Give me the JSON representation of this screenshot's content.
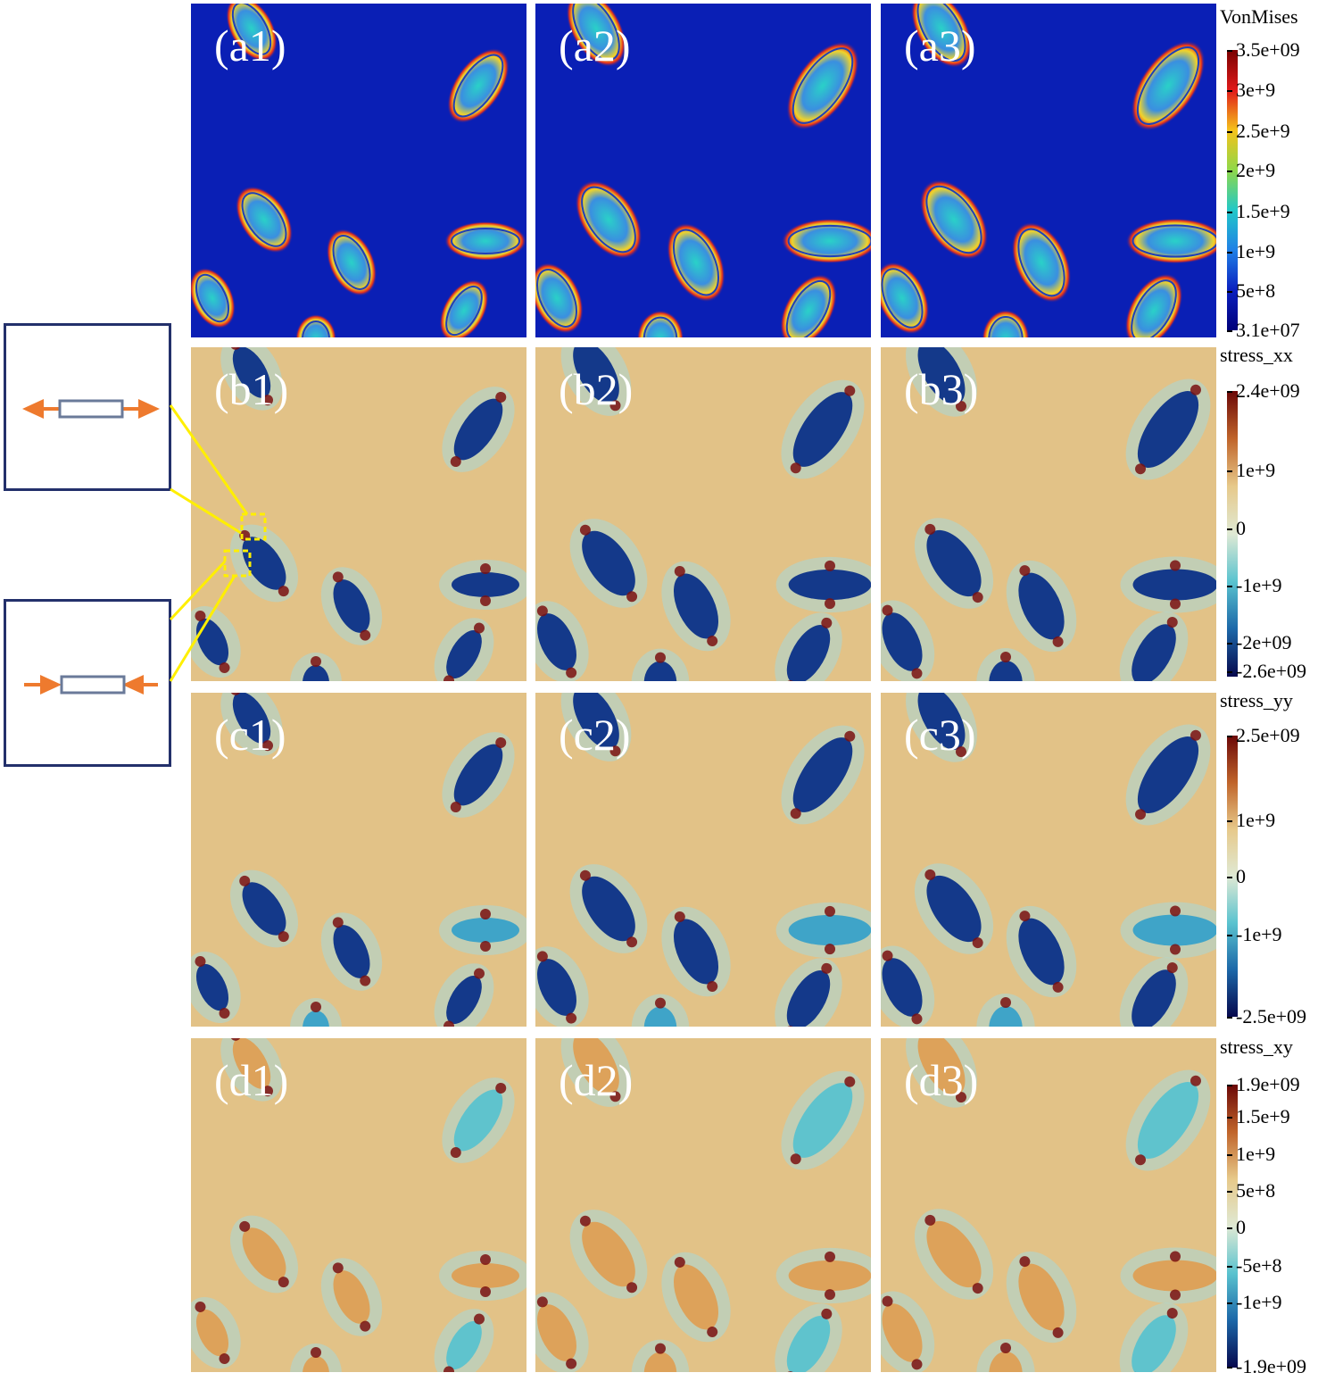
{
  "figure": {
    "columns": 3,
    "rows": [
      {
        "id": "a",
        "field": "VonMises",
        "labels": [
          "(a1)",
          "(a2)",
          "(a3)"
        ],
        "legend": {
          "title": "VonMises",
          "ticks": [
            "3.5e+09",
            "3e+9",
            "2.5e+9",
            "2e+9",
            "1.5e+9",
            "1e+9",
            "5e+8",
            "3.1e+07"
          ],
          "colors": [
            "#7a0000",
            "#e01a1a",
            "#f5c21b",
            "#8fd84a",
            "#22c8c8",
            "#1f80e6",
            "#0a1fbf",
            "#00007a"
          ]
        }
      },
      {
        "id": "b",
        "field": "stress_xx",
        "labels": [
          "(b1)",
          "(b2)",
          "(b3)"
        ],
        "legend": {
          "title": "stress_xx",
          "ticks": [
            "2.4e+09",
            "1e+9",
            "0",
            "-1e+9",
            "-2e+09",
            "-2.6e+09"
          ],
          "colors": [
            "#6b0707",
            "#c0642a",
            "#e7c98a",
            "#dfe9d4",
            "#5ac3cf",
            "#1c67a8",
            "#06084d"
          ]
        }
      },
      {
        "id": "c",
        "field": "stress_yy",
        "labels": [
          "(c1)",
          "(c2)",
          "(c3)"
        ],
        "legend": {
          "title": "stress_yy",
          "ticks": [
            "2.5e+09",
            "1e+9",
            "0",
            "-1e+9",
            "-2.5e+09"
          ],
          "colors": [
            "#6b0707",
            "#c0642a",
            "#e7c98a",
            "#dfe9d4",
            "#5ac3cf",
            "#1c67a8",
            "#06084d"
          ]
        }
      },
      {
        "id": "d",
        "field": "stress_xy",
        "labels": [
          "(d1)",
          "(d2)",
          "(d3)"
        ],
        "legend": {
          "title": "stress_xy",
          "ticks": [
            "1.9e+09",
            "1.5e+9",
            "1e+9",
            "5e+8",
            "0",
            "-5e+8",
            "-1e+9",
            "-1.9e+09"
          ],
          "colors": [
            "#6b0707",
            "#c0642a",
            "#e7c98a",
            "#dfe9d4",
            "#5ac3cf",
            "#1c67a8",
            "#06084d"
          ]
        }
      }
    ],
    "insets": [
      {
        "name": "tension-inset",
        "state": "tension"
      },
      {
        "name": "compression-inset",
        "state": "compression"
      }
    ],
    "colors": {
      "arrow": "#ee7a2e",
      "bar_outline": "#6a7a99",
      "inset_border": "#23306b",
      "connector": "#ffef00",
      "vm_background": "#0a1fb5",
      "stress_background": "#e2c287",
      "label": "#ffffff"
    }
  }
}
